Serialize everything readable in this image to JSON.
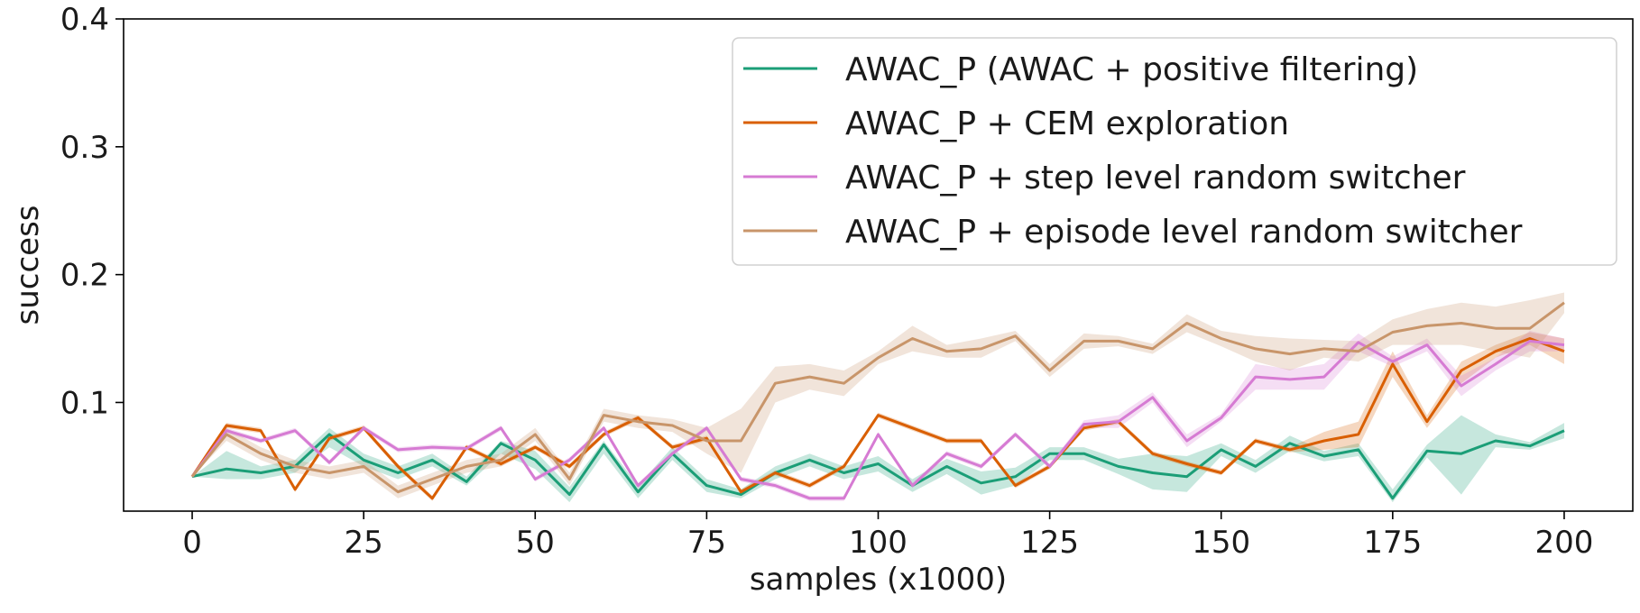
{
  "chart_data": {
    "type": "line",
    "title": "",
    "xlabel": "samples (x1000)",
    "ylabel": "success",
    "xlim": [
      -10,
      210
    ],
    "ylim": [
      0.015,
      0.4
    ],
    "xticks": [
      0,
      25,
      50,
      75,
      100,
      125,
      150,
      175,
      200
    ],
    "xtick_labels": [
      "0",
      "25",
      "50",
      "75",
      "100",
      "125",
      "150",
      "175",
      "200"
    ],
    "yticks": [
      0.1,
      0.2,
      0.3,
      0.4
    ],
    "ytick_labels": [
      "0.1",
      "0.2",
      "0.3",
      "0.4"
    ],
    "grid": false,
    "legend_position": "top-right",
    "x": [
      0,
      5,
      10,
      15,
      20,
      25,
      30,
      35,
      40,
      45,
      50,
      55,
      60,
      65,
      70,
      75,
      80,
      85,
      90,
      95,
      100,
      105,
      110,
      115,
      120,
      125,
      130,
      135,
      140,
      145,
      150,
      155,
      160,
      165,
      170,
      175,
      180,
      185,
      190,
      195,
      200
    ],
    "series": [
      {
        "name": "AWAC_P (AWAC + positive filtering)",
        "color": "#1b9e77",
        "values": [
          0.042,
          0.048,
          0.045,
          0.05,
          0.075,
          0.055,
          0.045,
          0.055,
          0.038,
          0.068,
          0.055,
          0.028,
          0.067,
          0.03,
          0.06,
          0.035,
          0.028,
          0.045,
          0.055,
          0.045,
          0.052,
          0.035,
          0.05,
          0.037,
          0.042,
          0.06,
          0.06,
          0.05,
          0.045,
          0.042,
          0.063,
          0.05,
          0.068,
          0.058,
          0.063,
          0.025,
          0.062,
          0.06,
          0.07,
          0.066,
          0.078
        ],
        "lower": [
          0.042,
          0.04,
          0.04,
          0.045,
          0.065,
          0.05,
          0.04,
          0.05,
          0.035,
          0.06,
          0.048,
          0.022,
          0.06,
          0.025,
          0.055,
          0.03,
          0.025,
          0.04,
          0.05,
          0.04,
          0.046,
          0.03,
          0.044,
          0.028,
          0.035,
          0.055,
          0.055,
          0.044,
          0.032,
          0.03,
          0.058,
          0.045,
          0.062,
          0.054,
          0.058,
          0.022,
          0.057,
          0.028,
          0.065,
          0.063,
          0.072
        ],
        "upper": [
          0.042,
          0.062,
          0.05,
          0.055,
          0.08,
          0.06,
          0.05,
          0.06,
          0.042,
          0.07,
          0.062,
          0.034,
          0.07,
          0.035,
          0.065,
          0.04,
          0.032,
          0.05,
          0.06,
          0.05,
          0.058,
          0.04,
          0.056,
          0.046,
          0.049,
          0.065,
          0.065,
          0.056,
          0.06,
          0.058,
          0.068,
          0.055,
          0.074,
          0.062,
          0.068,
          0.032,
          0.067,
          0.09,
          0.075,
          0.069,
          0.084
        ]
      },
      {
        "name": "AWAC_P + CEM exploration",
        "color": "#d95f02",
        "values": [
          0.042,
          0.082,
          0.078,
          0.032,
          0.072,
          0.08,
          0.05,
          0.025,
          0.065,
          0.052,
          0.065,
          0.05,
          0.075,
          0.088,
          0.065,
          0.072,
          0.03,
          0.045,
          0.035,
          0.05,
          0.09,
          0.08,
          0.07,
          0.07,
          0.035,
          0.05,
          0.08,
          0.085,
          0.06,
          0.052,
          0.045,
          0.07,
          0.063,
          0.07,
          0.075,
          0.13,
          0.085,
          0.125,
          0.14,
          0.15,
          0.14
        ],
        "lower": [
          0.042,
          0.08,
          0.076,
          0.03,
          0.07,
          0.078,
          0.048,
          0.023,
          0.063,
          0.05,
          0.063,
          0.048,
          0.073,
          0.086,
          0.063,
          0.07,
          0.028,
          0.043,
          0.033,
          0.048,
          0.088,
          0.078,
          0.068,
          0.068,
          0.033,
          0.048,
          0.078,
          0.083,
          0.058,
          0.05,
          0.043,
          0.068,
          0.061,
          0.063,
          0.065,
          0.12,
          0.08,
          0.115,
          0.135,
          0.145,
          0.13
        ],
        "upper": [
          0.042,
          0.084,
          0.08,
          0.034,
          0.074,
          0.082,
          0.052,
          0.027,
          0.067,
          0.054,
          0.067,
          0.052,
          0.077,
          0.09,
          0.067,
          0.074,
          0.032,
          0.047,
          0.037,
          0.052,
          0.092,
          0.082,
          0.072,
          0.072,
          0.037,
          0.052,
          0.082,
          0.087,
          0.062,
          0.054,
          0.047,
          0.072,
          0.065,
          0.077,
          0.085,
          0.14,
          0.09,
          0.132,
          0.145,
          0.155,
          0.15
        ]
      },
      {
        "name": "AWAC_P + step level random switcher",
        "color": "#d67bd3",
        "values": [
          0.042,
          0.078,
          0.07,
          0.078,
          0.053,
          0.08,
          0.063,
          0.065,
          0.064,
          0.08,
          0.04,
          0.055,
          0.08,
          0.035,
          0.06,
          0.08,
          0.04,
          0.035,
          0.025,
          0.025,
          0.075,
          0.035,
          0.06,
          0.05,
          0.075,
          0.05,
          0.083,
          0.085,
          0.104,
          0.07,
          0.088,
          0.12,
          0.118,
          0.12,
          0.147,
          0.132,
          0.145,
          0.113,
          0.13,
          0.148,
          0.145
        ],
        "lower": [
          0.042,
          0.076,
          0.068,
          0.076,
          0.051,
          0.078,
          0.061,
          0.063,
          0.062,
          0.078,
          0.038,
          0.053,
          0.078,
          0.033,
          0.058,
          0.078,
          0.038,
          0.033,
          0.023,
          0.023,
          0.073,
          0.033,
          0.058,
          0.048,
          0.073,
          0.048,
          0.08,
          0.08,
          0.1,
          0.065,
          0.085,
          0.11,
          0.11,
          0.11,
          0.14,
          0.128,
          0.14,
          0.105,
          0.125,
          0.14,
          0.14
        ],
        "upper": [
          0.042,
          0.08,
          0.072,
          0.08,
          0.055,
          0.082,
          0.065,
          0.067,
          0.066,
          0.082,
          0.042,
          0.057,
          0.082,
          0.037,
          0.062,
          0.082,
          0.042,
          0.037,
          0.027,
          0.027,
          0.077,
          0.037,
          0.062,
          0.052,
          0.077,
          0.052,
          0.086,
          0.09,
          0.108,
          0.075,
          0.091,
          0.13,
          0.126,
          0.13,
          0.154,
          0.136,
          0.15,
          0.121,
          0.135,
          0.156,
          0.15
        ]
      },
      {
        "name": "AWAC_P + episode level random switcher",
        "color": "#c8956a",
        "values": [
          0.042,
          0.075,
          0.06,
          0.05,
          0.045,
          0.05,
          0.03,
          0.04,
          0.05,
          0.055,
          0.075,
          0.04,
          0.09,
          0.085,
          0.082,
          0.07,
          0.07,
          0.115,
          0.12,
          0.115,
          0.135,
          0.15,
          0.14,
          0.142,
          0.152,
          0.125,
          0.148,
          0.148,
          0.142,
          0.162,
          0.15,
          0.142,
          0.138,
          0.142,
          0.14,
          0.155,
          0.16,
          0.162,
          0.158,
          0.158,
          0.178
        ],
        "lower": [
          0.042,
          0.07,
          0.055,
          0.045,
          0.04,
          0.045,
          0.025,
          0.035,
          0.045,
          0.05,
          0.07,
          0.035,
          0.085,
          0.08,
          0.077,
          0.06,
          0.045,
          0.1,
          0.11,
          0.105,
          0.13,
          0.14,
          0.135,
          0.135,
          0.148,
          0.12,
          0.142,
          0.144,
          0.138,
          0.155,
          0.144,
          0.132,
          0.125,
          0.135,
          0.132,
          0.145,
          0.145,
          0.145,
          0.14,
          0.135,
          0.17
        ],
        "upper": [
          0.042,
          0.08,
          0.065,
          0.055,
          0.05,
          0.055,
          0.035,
          0.045,
          0.055,
          0.06,
          0.08,
          0.045,
          0.095,
          0.09,
          0.087,
          0.08,
          0.095,
          0.128,
          0.13,
          0.125,
          0.14,
          0.16,
          0.145,
          0.15,
          0.156,
          0.13,
          0.154,
          0.152,
          0.146,
          0.169,
          0.156,
          0.152,
          0.15,
          0.149,
          0.148,
          0.165,
          0.173,
          0.178,
          0.175,
          0.18,
          0.186
        ]
      }
    ]
  }
}
